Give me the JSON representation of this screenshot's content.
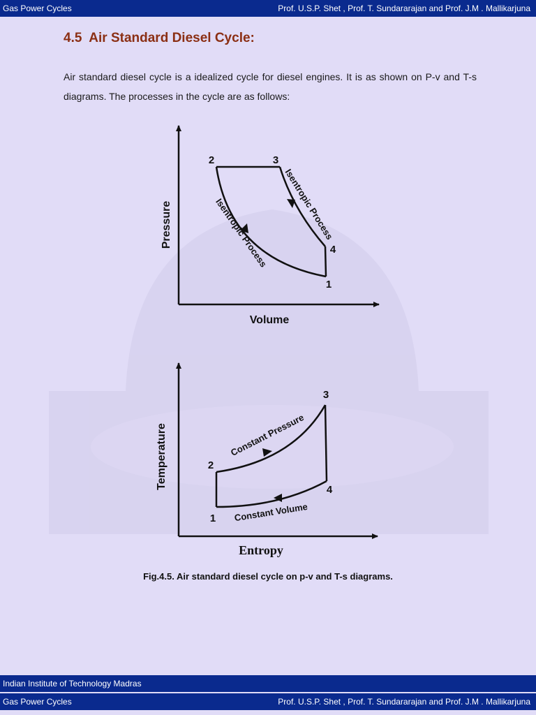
{
  "header": {
    "course": "Gas Power Cycles",
    "authors": "Prof. U.S.P. Shet , Prof. T. Sundararajan and Prof. J.M . Mallikarjuna"
  },
  "section": {
    "number": "4.5",
    "title": "Air Standard Diesel Cycle:",
    "intro": "Air standard diesel cycle is a idealized cycle for diesel engines. It is as shown on P-v and T-s diagrams. The processes in the cycle are as follows:"
  },
  "pv_diagram": {
    "y_axis_label": "Pressure",
    "x_axis_label": "Volume",
    "points": [
      "1",
      "2",
      "3",
      "4"
    ],
    "process_compression": "Isentropic Process",
    "process_expansion": "Isentropic Process"
  },
  "ts_diagram": {
    "y_axis_label": "Temperature",
    "x_axis_label": "Entropy",
    "points": [
      "1",
      "2",
      "3",
      "4"
    ],
    "process_heat_addition": "Constant Pressure",
    "process_heat_rejection": "Constant Volume"
  },
  "caption": "Fig.4.5. Air standard diesel cycle on p-v and T-s diagrams.",
  "footer": {
    "institution": "Indian Institute of Technology Madras",
    "course": "Gas Power Cycles",
    "authors": "Prof. U.S.P. Shet , Prof. T. Sundararajan and Prof. J.M . Mallikarjuna"
  }
}
